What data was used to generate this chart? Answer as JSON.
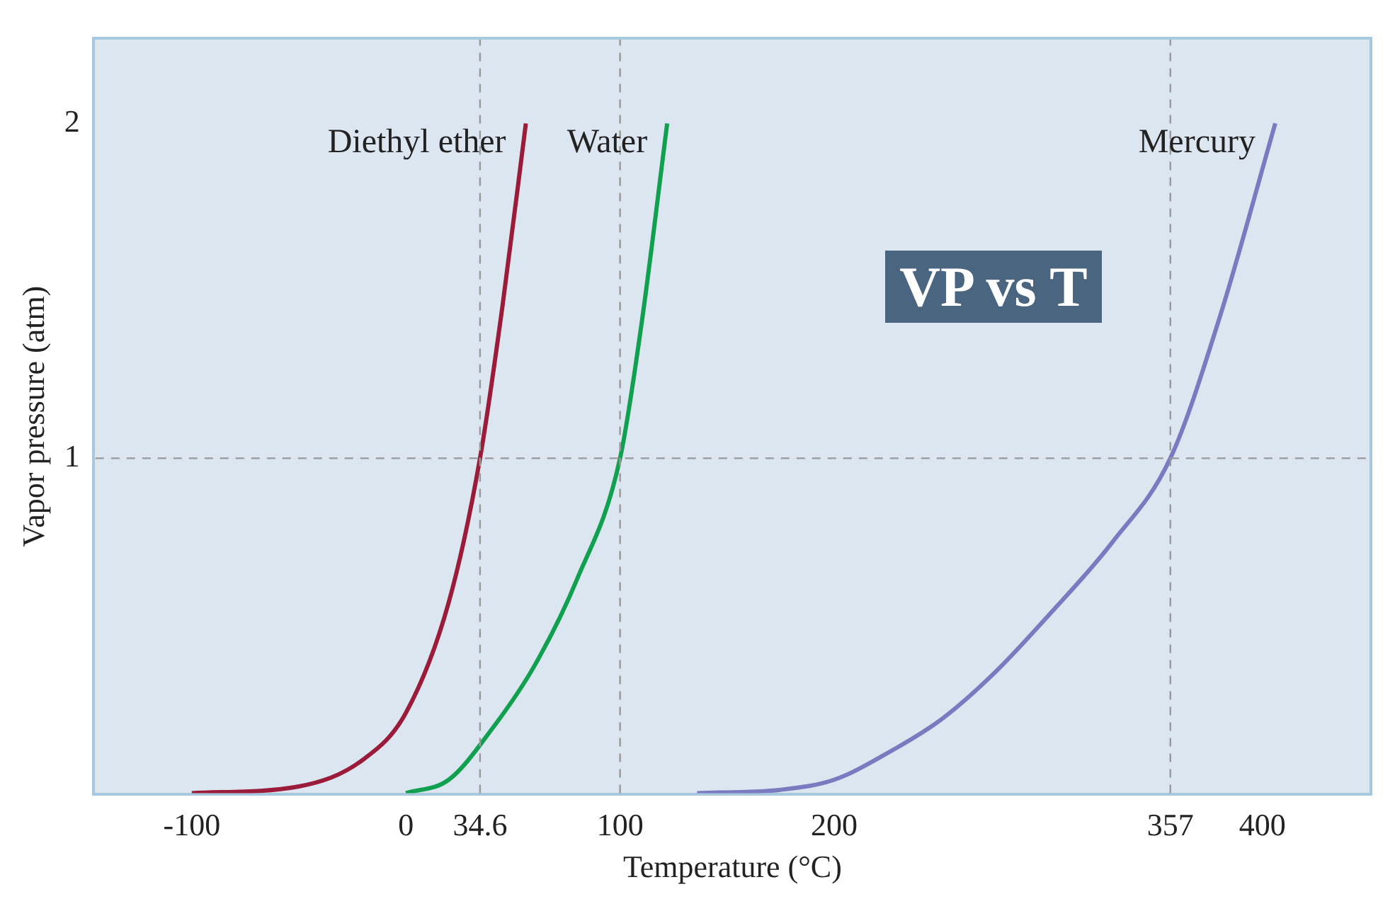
{
  "chart_data": {
    "type": "line",
    "xlabel": "Temperature (°C)",
    "ylabel": "Vapor pressure (atm)",
    "xlim": [
      -145,
      450
    ],
    "ylim": [
      0,
      2.25
    ],
    "xticks": [
      -100,
      0,
      34.6,
      100,
      200,
      357,
      400
    ],
    "yticks": [
      1,
      2
    ],
    "series": [
      {
        "name": "Diethyl ether",
        "color": "#9b1b3a",
        "x": [
          -100,
          -50,
          -20,
          0,
          20,
          34.6,
          45,
          56
        ],
        "values": [
          0,
          0.02,
          0.1,
          0.24,
          0.57,
          1,
          1.45,
          2
        ]
      },
      {
        "name": "Water",
        "color": "#10a050",
        "x": [
          0,
          20,
          40,
          60,
          80,
          100,
          110,
          122
        ],
        "values": [
          0,
          0.04,
          0.19,
          0.38,
          0.64,
          1,
          1.4,
          2
        ]
      },
      {
        "name": "Mercury",
        "color": "#7a7ac0",
        "x": [
          136,
          175,
          200,
          225,
          250,
          275,
          300,
          330,
          357,
          380,
          406
        ],
        "values": [
          0,
          0.01,
          0.04,
          0.12,
          0.22,
          0.36,
          0.53,
          0.75,
          1,
          1.42,
          2
        ]
      }
    ],
    "ref_lines": [
      {
        "axis": "y",
        "value": 1,
        "line_style": "dashed",
        "color": "#999999"
      },
      {
        "axis": "x",
        "value": 34.6,
        "line_style": "dashed",
        "color": "#999999"
      },
      {
        "axis": "x",
        "value": 100,
        "line_style": "dashed",
        "color": "#999999"
      },
      {
        "axis": "x",
        "value": 357,
        "line_style": "dashed",
        "color": "#999999"
      }
    ],
    "annotations": [
      "VP vs T"
    ],
    "grid": false,
    "legend": false,
    "marker": "none",
    "line_style": "solid"
  }
}
